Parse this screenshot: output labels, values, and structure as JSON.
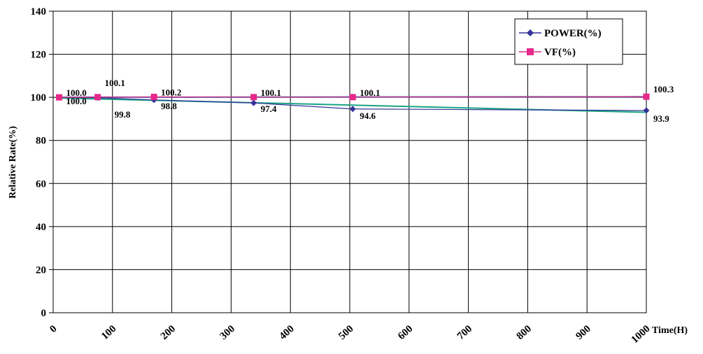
{
  "chart_data": {
    "type": "line",
    "xlabel": "Time(H)",
    "ylabel": "Relative Rate(%)",
    "xlim": [
      0,
      1000
    ],
    "ylim": [
      0,
      140
    ],
    "x_ticks": [
      "0",
      "100",
      "200",
      "300",
      "400",
      "500",
      "600",
      "700",
      "800",
      "900",
      "1000"
    ],
    "y_ticks": [
      "0",
      "20",
      "40",
      "60",
      "80",
      "100",
      "120",
      "140"
    ],
    "grid": true,
    "legend_position": "top-right",
    "series": [
      {
        "name": "POWER(%)",
        "color": "#333399",
        "marker": "diamond",
        "x": [
          10,
          75,
          170,
          338,
          505,
          1000
        ],
        "values": [
          100.0,
          99.8,
          98.8,
          97.4,
          94.6,
          93.9
        ],
        "labels": [
          "100.0",
          "99.8",
          "98.8",
          "97.4",
          "94.6",
          "93.9"
        ],
        "trendline_color": "#1aa383"
      },
      {
        "name": "VF(%)",
        "color": "#e6288a",
        "marker": "square",
        "x": [
          10,
          75,
          170,
          338,
          505,
          1000
        ],
        "values": [
          100.0,
          100.1,
          100.2,
          100.1,
          100.1,
          100.3
        ],
        "labels": [
          "100.0",
          "100.1",
          "100.2",
          "100.1",
          "100.1",
          "100.3"
        ],
        "trendline_color": "#2f6fa3"
      }
    ]
  }
}
